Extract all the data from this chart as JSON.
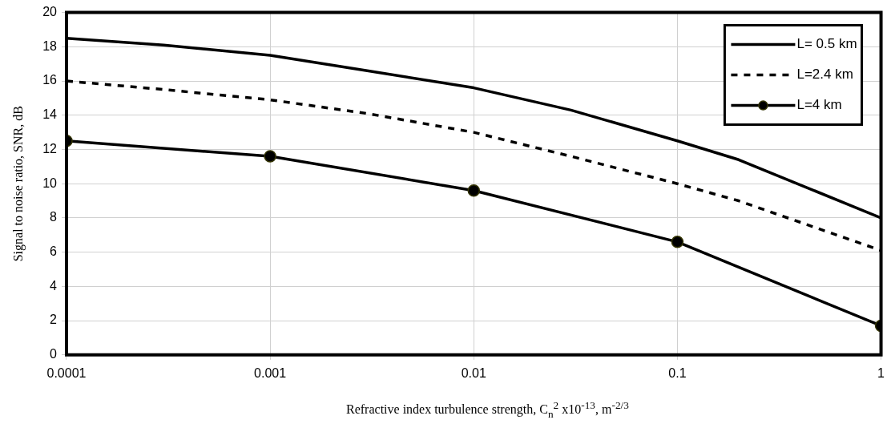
{
  "chart_data": {
    "type": "line",
    "xlabel": "Refractive index turbulence strength, C$_{n}$$^{2}$ x10$^{-13}$, m$^{-2/3}$",
    "ylabel": "Signal to noise ratio, SNR, dB",
    "log": "x",
    "xlim": [
      0.0001,
      1
    ],
    "xticks": [
      0.0001,
      0.001,
      0.01,
      0.1,
      1
    ],
    "ylim": [
      0,
      20
    ],
    "yticks": [
      0,
      2,
      4,
      6,
      8,
      10,
      12,
      14,
      16,
      18,
      20
    ],
    "grid": true,
    "legend": "top right",
    "series": [
      {
        "name": "L= 0.5 km",
        "color": "#000000",
        "line_style": "solid",
        "marker": "none",
        "x": [
          0.0001,
          0.0003,
          0.001,
          0.003,
          0.01,
          0.03,
          0.1,
          0.2,
          1
        ],
        "values": [
          18.5,
          18.1,
          17.5,
          16.6,
          15.6,
          14.3,
          12.5,
          11.4,
          8.0
        ]
      },
      {
        "name": "L=2.4 km",
        "color": "#000000",
        "line_style": "dashed",
        "marker": "none",
        "x": [
          0.0001,
          0.0003,
          0.001,
          0.003,
          0.01,
          0.03,
          0.1,
          0.2,
          1
        ],
        "values": [
          16.0,
          15.5,
          14.9,
          14.1,
          13.0,
          11.6,
          10.0,
          9.0,
          6.1
        ]
      },
      {
        "name": "L=4 km",
        "color": "#000000",
        "line_style": "solid",
        "marker": "circle",
        "x": [
          0.0001,
          0.001,
          0.01,
          0.1,
          1
        ],
        "values": [
          12.5,
          11.6,
          9.6,
          6.6,
          1.7
        ]
      }
    ]
  }
}
